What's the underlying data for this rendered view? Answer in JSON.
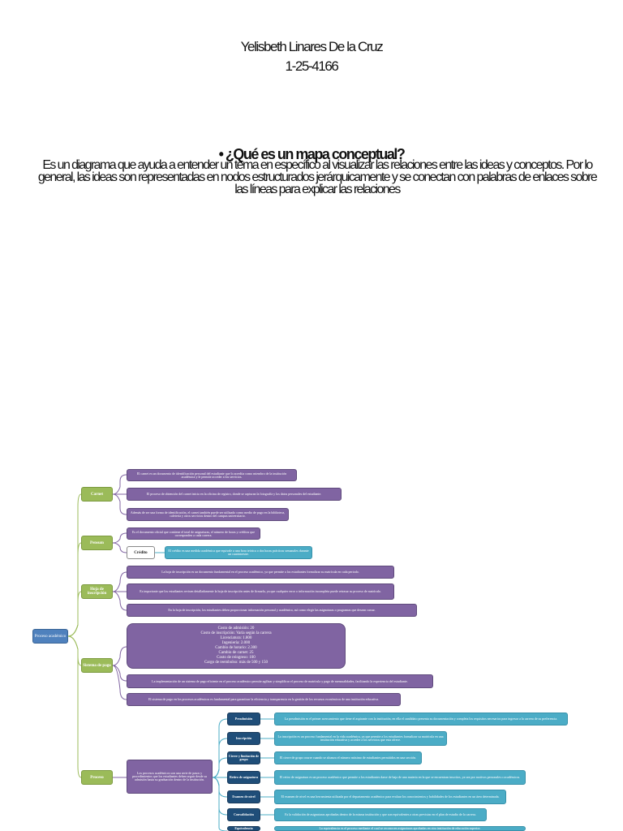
{
  "header": {
    "name": "Yelisbeth Linares De la Cruz",
    "id": "1-25-4166"
  },
  "question": {
    "title": "• ¿Qué es un mapa conceptual?",
    "body": "Es un diagrama que ayuda a entender un tema en específico al visualizar las relaciones entre las ideas y conceptos. Por lo general, las ideas son representadas en nodos estructurados jerárquicamente y se conectan con palabras de enlaces sobre las líneas para explicar las relaciones"
  },
  "map": {
    "root": "Proceso académico",
    "carnet": {
      "label": "Carnet",
      "details": [
        "El carnet es un documento de identificación personal del estudiante que lo acredita como miembro de la institución académica y le permite acceder a los servicios.",
        "El proceso de obtención del carnet inicia en la oficina de registro, donde se capturan la fotografía y los datos personales del estudiante.",
        "Además de ser una forma de identificación, el carnet también puede ser utilizado como medio de pago en la biblioteca, cafetería y otros servicios dentro del campus universitario."
      ]
    },
    "pensum": {
      "label": "Pensum",
      "detail": "Es el documento oficial que contiene el total de asignaturas, el número de horas y créditos que corresponden a cada carrera.",
      "credito": {
        "label": "Crédito",
        "detail": "El crédito es una medida académica que equivale a una hora teórica o dos horas prácticas semanales durante un cuatrimestre."
      }
    },
    "hoja": {
      "label": "Hoja de inscripción",
      "details": [
        "La hoja de inscripción es un documento fundamental en el proceso académico, ya que permite a los estudiantes formalizar su matrícula en cada periodo.",
        "Es importante que los estudiantes revisen detalladamente la hoja de inscripción antes de firmarla, ya que cualquier error o información incompleta puede retrasar su proceso de matrícula.",
        "En la hoja de inscripción, los estudiantes deben proporcionar información personal y académica, así como elegir las asignaturas o programas que desean cursar."
      ]
    },
    "sistema": {
      "label": "Sistema de pago",
      "costs": [
        "Costo de admisión: 20",
        "Costo de inscripción: Varía según la carrera",
        "Licenciatura: 1.800",
        "Ingeniería: 2.000",
        "Cambio de horario: 2.300",
        "Cambio de carnet: 25",
        "Costo de reingreso: 100",
        "Cargo de reembolso: más de 500 y 150"
      ],
      "details": [
        "La implementación de un sistema de pago eficiente en el proceso académico permite agilizar y simplificar el proceso de matrícula y pago de mensualidades, facilitando la experiencia del estudiante.",
        "El sistema de pago en los procesos académicos es fundamental para garantizar la eficiencia y transparencia en la gestión de los recursos económicos de una institución educativa."
      ]
    },
    "proceso": {
      "label": "Proceso",
      "summary": "Los procesos académicos son una serie de pasos y procedimientos que los estudiantes deben seguir desde su admisión hasta su graduación dentro de la institución.",
      "steps": [
        {
          "label": "Preadmisión",
          "detail": "La preadmisión es el primer acercamiento que tiene el aspirante con la institución, en ella el candidato presenta su documentación y completa los requisitos necesarios para ingresar a la carrera de su preferencia."
        },
        {
          "label": "Inscripción",
          "detail": "La inscripción es un proceso fundamental en la vida académica, ya que permite a los estudiantes formalizar su matrícula en una institución educativa y acceder a los servicios que esta ofrece."
        },
        {
          "label": "Cierre y limitación de grupo",
          "detail": "El cierre de grupo ocurre cuando se alcanza el número máximo de estudiantes permitidos en una sección."
        },
        {
          "label": "Retiro de asignatura",
          "detail": "El retiro de asignatura es un proceso académico que permite a los estudiantes darse de baja de una materia en la que se encuentran inscritos, ya sea por motivos personales o académicos."
        },
        {
          "label": "Examen de nivel",
          "detail": "El examen de nivel es una herramienta utilizada por el departamento académico para evaluar los conocimientos y habilidades de los estudiantes en un área determinada."
        },
        {
          "label": "Convalidación",
          "detail": "Es la validación de asignaturas aprobadas dentro de la misma institución y que son equivalentes a otras previstas en el plan de estudio de la carrera."
        },
        {
          "label": "Equivalencia",
          "detail": "La equivalencia es el proceso mediante el cual se reconocen asignaturas aprobadas en otra institución de educación superior."
        }
      ]
    }
  }
}
